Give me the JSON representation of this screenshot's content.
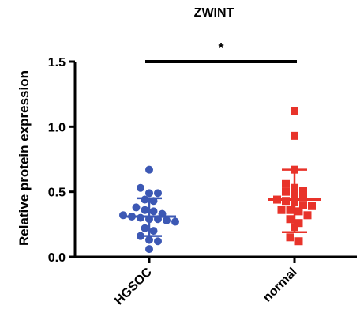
{
  "chart_data": {
    "type": "scatter",
    "title": "ZWINT",
    "ylabel": "Relative protein expression",
    "xlabel": "",
    "categories": [
      "HGSOC",
      "normal"
    ],
    "ylim": [
      0,
      1.5
    ],
    "yticks": [
      "0.0",
      "0.5",
      "1.0",
      "1.5"
    ],
    "ytick_values": [
      0,
      0.5,
      1.0,
      1.5
    ],
    "grid": false,
    "significance": {
      "label": "*",
      "between": [
        "HGSOC",
        "normal"
      ]
    },
    "colors": {
      "HGSOC": "#3c58b4",
      "normal": "#e8332a",
      "axis": "#000000",
      "sig": "#000000"
    },
    "series": [
      {
        "category": "HGSOC",
        "marker": "circle",
        "mean": 0.31,
        "sd_upper": 0.45,
        "sd_lower": 0.16,
        "values": [
          0.67,
          0.53,
          0.49,
          0.49,
          0.44,
          0.43,
          0.38,
          0.36,
          0.35,
          0.33,
          0.32,
          0.31,
          0.3,
          0.29,
          0.29,
          0.28,
          0.27,
          0.22,
          0.2,
          0.16,
          0.13,
          0.12,
          0.06
        ]
      },
      {
        "category": "normal",
        "marker": "square",
        "mean": 0.44,
        "sd_upper": 0.67,
        "sd_lower": 0.19,
        "values": [
          1.12,
          0.93,
          0.67,
          0.56,
          0.53,
          0.51,
          0.5,
          0.48,
          0.47,
          0.44,
          0.43,
          0.42,
          0.4,
          0.39,
          0.36,
          0.36,
          0.35,
          0.32,
          0.29,
          0.26,
          0.23,
          0.15,
          0.12
        ]
      }
    ]
  }
}
